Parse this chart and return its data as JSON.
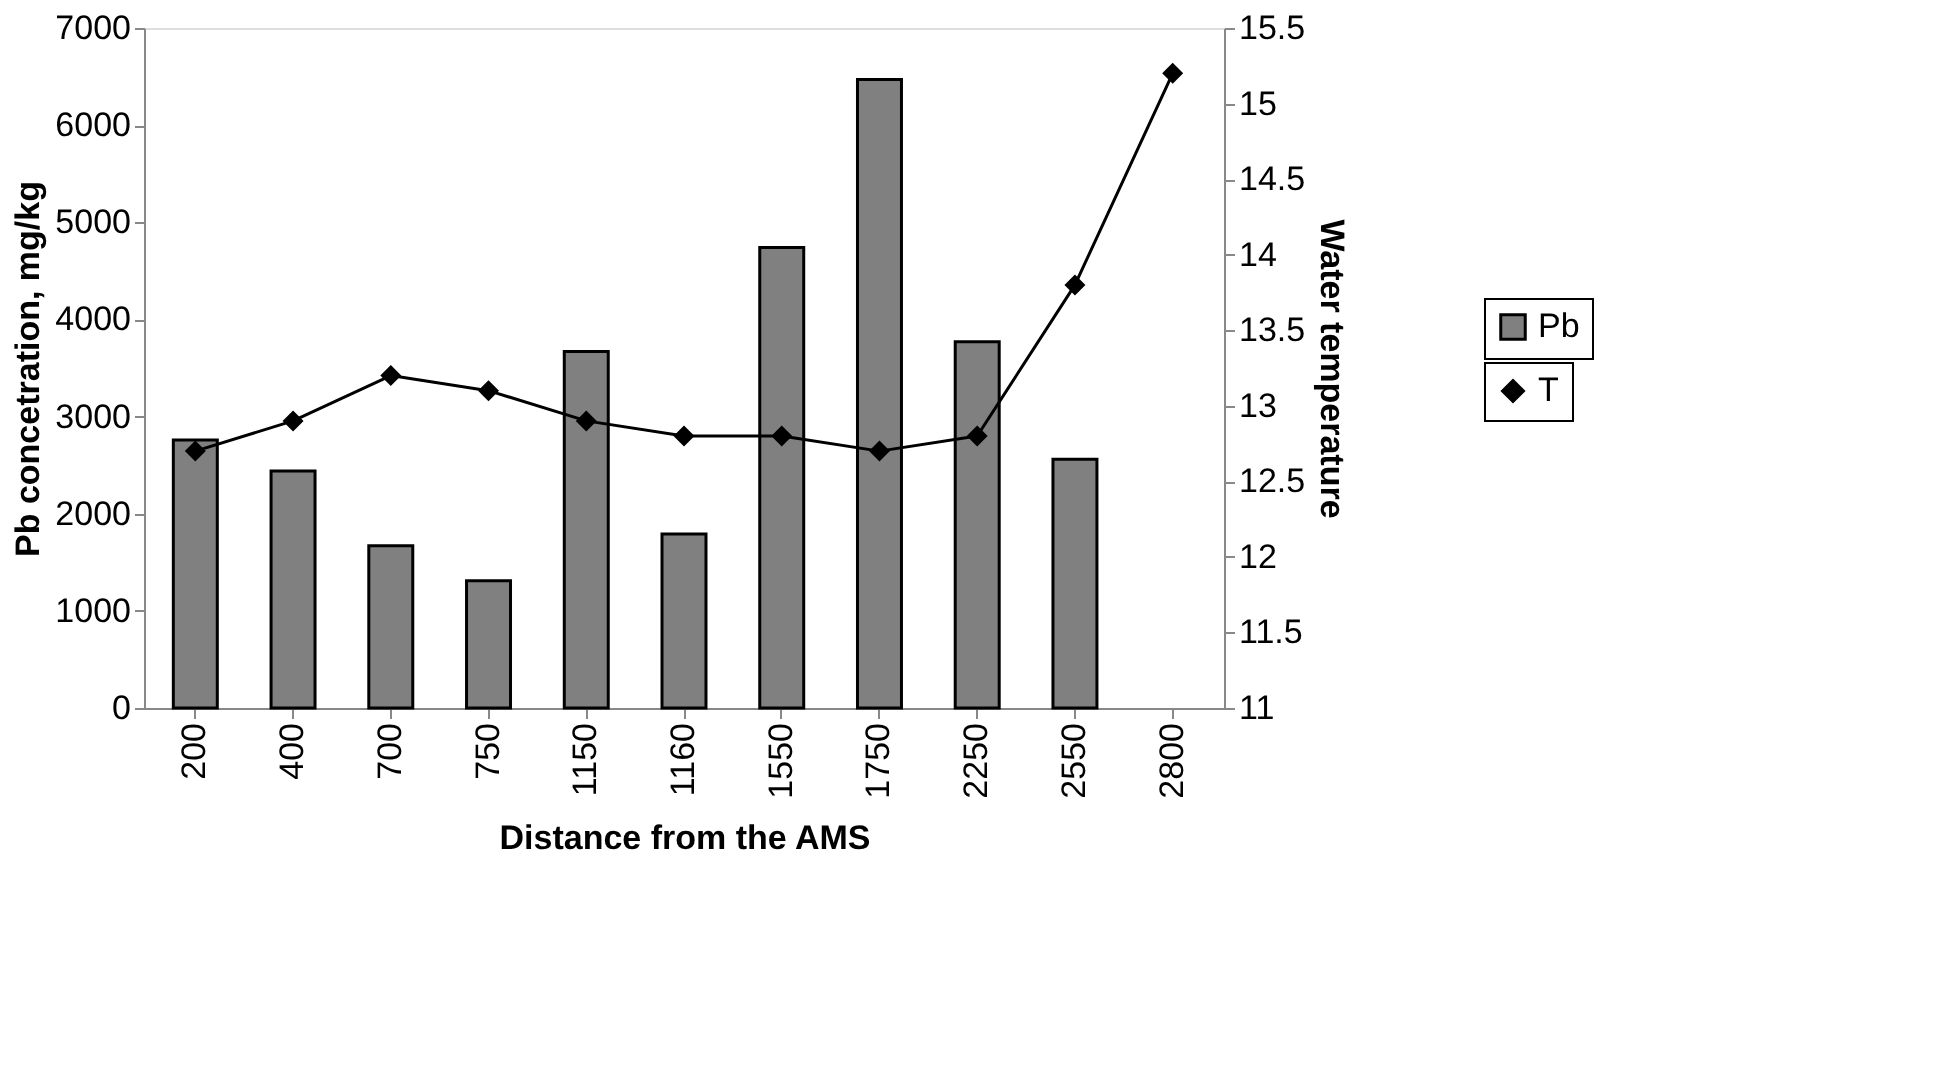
{
  "chart_data": {
    "type": "bar",
    "xlabel": "Distance from the AMS",
    "ylabel": "Pb concetration, mg/kg",
    "y2label": "Water temperature",
    "categories": [
      "200",
      "400",
      "700",
      "750",
      "1150",
      "1160",
      "1550",
      "1750",
      "2250",
      "2550",
      "2800"
    ],
    "series": [
      {
        "name": "Pb",
        "color": "#808080",
        "values": [
          2760,
          2440,
          1670,
          1310,
          3670,
          1790,
          4740,
          6470,
          3770,
          2560,
          null
        ]
      },
      {
        "name": "T",
        "type": "line",
        "axis": "y2",
        "color": "#000000",
        "marker": "diamond",
        "values": [
          12.7,
          12.9,
          13.2,
          13.1,
          12.9,
          12.8,
          12.8,
          12.7,
          12.8,
          13.8,
          15.2
        ]
      }
    ],
    "ylim": [
      0,
      7000
    ],
    "yticks": [
      0,
      1000,
      2000,
      3000,
      4000,
      5000,
      6000,
      7000
    ],
    "y2lim": [
      11,
      15.5
    ],
    "y2ticks": [
      11,
      11.5,
      12,
      12.5,
      13,
      13.5,
      14,
      14.5,
      15,
      15.5
    ],
    "grid": false,
    "legend": "right"
  }
}
